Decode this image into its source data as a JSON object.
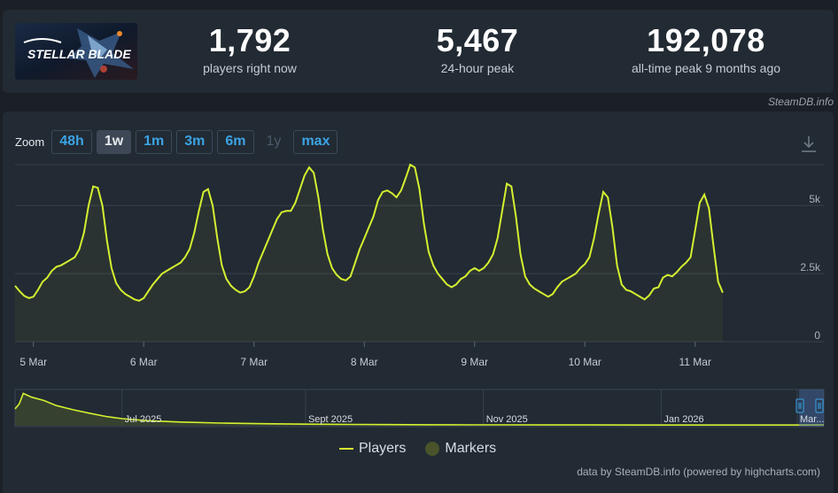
{
  "stats": [
    {
      "value": "1,792",
      "label": "players right now"
    },
    {
      "value": "5,467",
      "label": "24-hour peak"
    },
    {
      "value": "192,078",
      "label": "all-time peak 9 months ago"
    }
  ],
  "game_logo_text": "STELLAR BLADE",
  "steamdb_credit": "SteamDB.info",
  "zoom": {
    "label": "Zoom",
    "buttons": [
      {
        "label": "48h",
        "state": "normal"
      },
      {
        "label": "1w",
        "state": "active"
      },
      {
        "label": "1m",
        "state": "normal"
      },
      {
        "label": "3m",
        "state": "normal"
      },
      {
        "label": "6m",
        "state": "normal"
      },
      {
        "label": "1y",
        "state": "disabled"
      },
      {
        "label": "max",
        "state": "normal"
      }
    ]
  },
  "legend": {
    "players": "Players",
    "markers": "Markers"
  },
  "footer_credit": "data by SteamDB.info (powered by highcharts.com)",
  "colors": {
    "series": "#d4f030",
    "marker": "#49542b",
    "background": "#222a33",
    "accent": "#3ba4e6"
  },
  "chart_data": {
    "type": "line",
    "series_name": "Players",
    "y_ticks": [
      "0",
      "2.5k",
      "5k"
    ],
    "ylim": [
      0,
      6500
    ],
    "x_tick_labels": [
      "5 Mar",
      "6 Mar",
      "7 Mar",
      "8 Mar",
      "9 Mar",
      "10 Mar",
      "11 Mar"
    ],
    "grid": true,
    "legend_position": "bottom",
    "x_start_hour": -4,
    "x_end_hour": 172,
    "points": [
      [
        -4,
        2050
      ],
      [
        -3,
        1850
      ],
      [
        -2,
        1680
      ],
      [
        -1,
        1600
      ],
      [
        0,
        1650
      ],
      [
        1,
        1900
      ],
      [
        2,
        2200
      ],
      [
        3,
        2350
      ],
      [
        4,
        2600
      ],
      [
        5,
        2750
      ],
      [
        6,
        2800
      ],
      [
        7,
        2900
      ],
      [
        8,
        3000
      ],
      [
        9,
        3100
      ],
      [
        10,
        3400
      ],
      [
        11,
        4000
      ],
      [
        12,
        5000
      ],
      [
        13,
        5700
      ],
      [
        14,
        5650
      ],
      [
        15,
        5000
      ],
      [
        16,
        3700
      ],
      [
        17,
        2700
      ],
      [
        18,
        2150
      ],
      [
        19,
        1900
      ],
      [
        20,
        1750
      ],
      [
        21,
        1650
      ],
      [
        22,
        1550
      ],
      [
        23,
        1500
      ],
      [
        24,
        1600
      ],
      [
        25,
        1850
      ],
      [
        26,
        2100
      ],
      [
        27,
        2300
      ],
      [
        28,
        2500
      ],
      [
        29,
        2600
      ],
      [
        30,
        2700
      ],
      [
        31,
        2800
      ],
      [
        32,
        2900
      ],
      [
        33,
        3100
      ],
      [
        34,
        3400
      ],
      [
        35,
        4000
      ],
      [
        36,
        4800
      ],
      [
        37,
        5500
      ],
      [
        38,
        5600
      ],
      [
        39,
        5000
      ],
      [
        40,
        3800
      ],
      [
        41,
        2800
      ],
      [
        42,
        2300
      ],
      [
        43,
        2050
      ],
      [
        44,
        1900
      ],
      [
        45,
        1800
      ],
      [
        46,
        1850
      ],
      [
        47,
        2000
      ],
      [
        48,
        2400
      ],
      [
        49,
        2900
      ],
      [
        50,
        3300
      ],
      [
        51,
        3700
      ],
      [
        52,
        4100
      ],
      [
        53,
        4500
      ],
      [
        54,
        4750
      ],
      [
        55,
        4800
      ],
      [
        56,
        4800
      ],
      [
        57,
        5100
      ],
      [
        58,
        5600
      ],
      [
        59,
        6100
      ],
      [
        60,
        6400
      ],
      [
        61,
        6200
      ],
      [
        62,
        5300
      ],
      [
        63,
        4100
      ],
      [
        64,
        3200
      ],
      [
        65,
        2700
      ],
      [
        66,
        2450
      ],
      [
        67,
        2300
      ],
      [
        68,
        2250
      ],
      [
        69,
        2400
      ],
      [
        70,
        2900
      ],
      [
        71,
        3400
      ],
      [
        72,
        3800
      ],
      [
        73,
        4200
      ],
      [
        74,
        4600
      ],
      [
        75,
        5200
      ],
      [
        76,
        5500
      ],
      [
        77,
        5550
      ],
      [
        78,
        5450
      ],
      [
        79,
        5300
      ],
      [
        80,
        5550
      ],
      [
        81,
        6000
      ],
      [
        82,
        6500
      ],
      [
        83,
        6400
      ],
      [
        84,
        5600
      ],
      [
        85,
        4300
      ],
      [
        86,
        3300
      ],
      [
        87,
        2800
      ],
      [
        88,
        2500
      ],
      [
        89,
        2300
      ],
      [
        90,
        2100
      ],
      [
        91,
        2000
      ],
      [
        92,
        2100
      ],
      [
        93,
        2300
      ],
      [
        94,
        2400
      ],
      [
        95,
        2600
      ],
      [
        96,
        2700
      ],
      [
        97,
        2600
      ],
      [
        98,
        2700
      ],
      [
        99,
        2900
      ],
      [
        100,
        3200
      ],
      [
        101,
        3800
      ],
      [
        102,
        4800
      ],
      [
        103,
        5800
      ],
      [
        104,
        5700
      ],
      [
        105,
        4600
      ],
      [
        106,
        3200
      ],
      [
        107,
        2400
      ],
      [
        108,
        2100
      ],
      [
        109,
        1950
      ],
      [
        110,
        1850
      ],
      [
        111,
        1750
      ],
      [
        112,
        1650
      ],
      [
        113,
        1750
      ],
      [
        114,
        2000
      ],
      [
        115,
        2200
      ],
      [
        116,
        2300
      ],
      [
        117,
        2400
      ],
      [
        118,
        2500
      ],
      [
        119,
        2700
      ],
      [
        120,
        2850
      ],
      [
        121,
        3100
      ],
      [
        122,
        3800
      ],
      [
        123,
        4700
      ],
      [
        124,
        5500
      ],
      [
        125,
        5300
      ],
      [
        126,
        4200
      ],
      [
        127,
        2800
      ],
      [
        128,
        2100
      ],
      [
        129,
        1900
      ],
      [
        130,
        1850
      ],
      [
        131,
        1750
      ],
      [
        132,
        1650
      ],
      [
        133,
        1550
      ],
      [
        134,
        1700
      ],
      [
        135,
        1950
      ],
      [
        136,
        2000
      ],
      [
        137,
        2350
      ],
      [
        138,
        2450
      ],
      [
        139,
        2400
      ],
      [
        140,
        2550
      ],
      [
        141,
        2750
      ],
      [
        142,
        2900
      ],
      [
        143,
        3100
      ],
      [
        144,
        4100
      ],
      [
        145,
        5100
      ],
      [
        146,
        5400
      ],
      [
        147,
        4900
      ],
      [
        148,
        3500
      ],
      [
        149,
        2200
      ],
      [
        150,
        1800
      ]
    ]
  },
  "navigator": {
    "labels": [
      "Jul 2025",
      "Sept 2025",
      "Nov 2025",
      "Jan 2026",
      "Mar..."
    ],
    "x_start_month": 0.0,
    "x_end_month": 9.8,
    "ylim": [
      0,
      200000
    ],
    "points": [
      [
        0.0,
        100000
      ],
      [
        0.05,
        130000
      ],
      [
        0.1,
        192078
      ],
      [
        0.2,
        170000
      ],
      [
        0.35,
        150000
      ],
      [
        0.5,
        120000
      ],
      [
        0.7,
        95000
      ],
      [
        0.9,
        75000
      ],
      [
        1.1,
        55000
      ],
      [
        1.3,
        42000
      ],
      [
        1.6,
        30000
      ],
      [
        2.0,
        22000
      ],
      [
        2.5,
        16000
      ],
      [
        3.0,
        12000
      ],
      [
        3.5,
        9500
      ],
      [
        4.0,
        8000
      ],
      [
        4.5,
        7000
      ],
      [
        5.0,
        6000
      ],
      [
        5.5,
        5500
      ],
      [
        6.0,
        5000
      ],
      [
        6.5,
        4700
      ],
      [
        7.0,
        4500
      ],
      [
        7.5,
        4300
      ],
      [
        8.0,
        4200
      ],
      [
        8.5,
        4100
      ],
      [
        9.0,
        4200
      ],
      [
        9.5,
        4300
      ],
      [
        9.8,
        5400
      ]
    ]
  }
}
